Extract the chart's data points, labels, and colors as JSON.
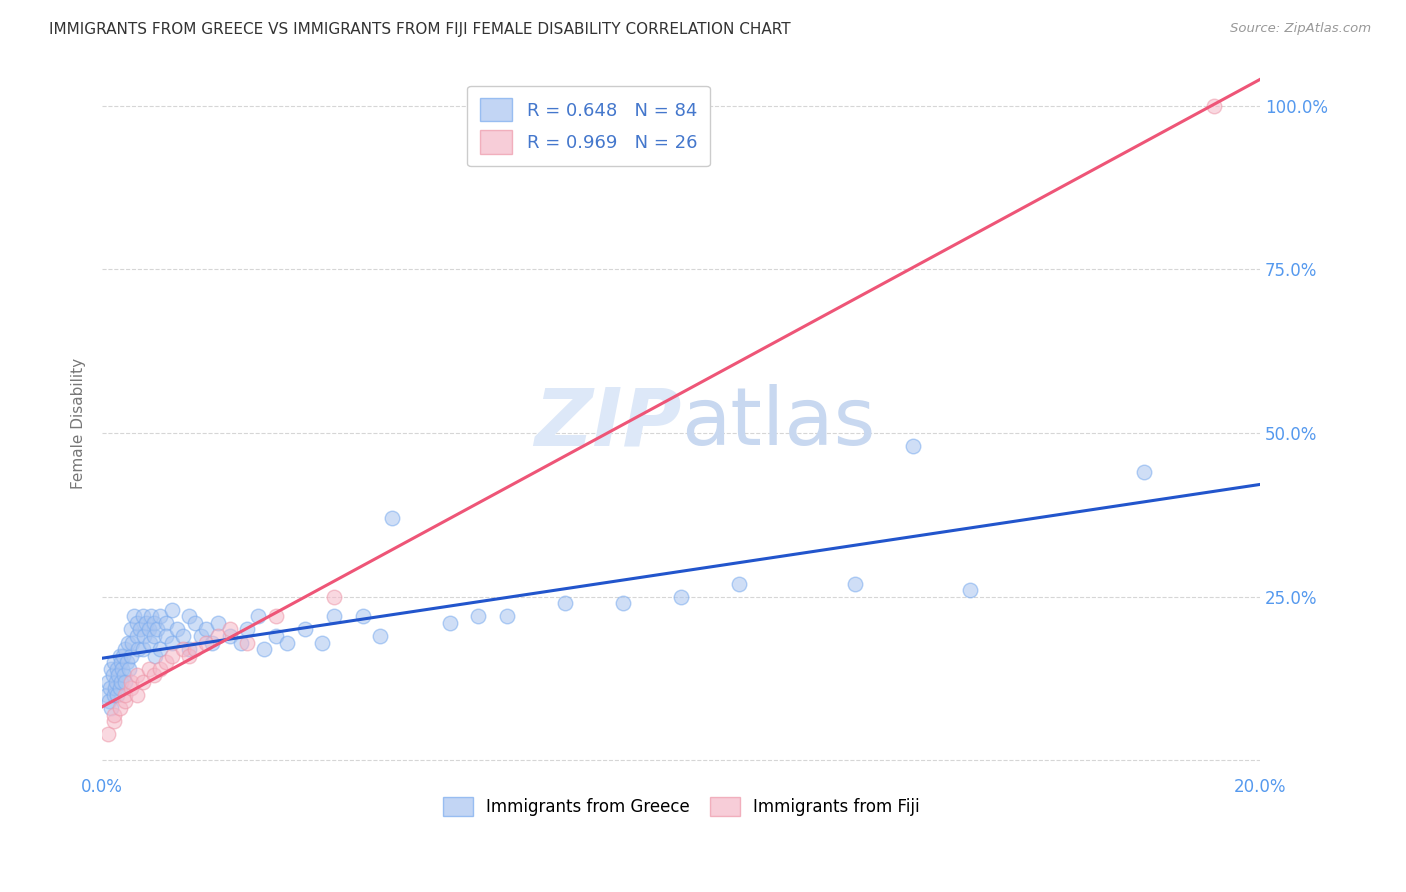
{
  "title": "IMMIGRANTS FROM GREECE VS IMMIGRANTS FROM FIJI FEMALE DISABILITY CORRELATION CHART",
  "source": "Source: ZipAtlas.com",
  "ylabel": "Female Disability",
  "xlim": [
    0.0,
    0.2
  ],
  "ylim": [
    -0.02,
    1.05
  ],
  "greece_color": "#a8c4f0",
  "fiji_color": "#f5b8c8",
  "greece_line_color": "#2255cc",
  "fiji_line_color": "#ee5577",
  "greece_edge_color": "#7aabee",
  "fiji_edge_color": "#ee99aa",
  "legend_text_color": "#4477cc",
  "watermark_color": "#dde8f8",
  "background_color": "#ffffff",
  "grid_color": "#cccccc",
  "tick_color": "#5599ee",
  "ylabel_color": "#777777",
  "title_color": "#333333",
  "source_color": "#999999",
  "greece_seed_x": [
    0.0008,
    0.001,
    0.0012,
    0.0014,
    0.0015,
    0.0016,
    0.0018,
    0.002,
    0.002,
    0.0022,
    0.0023,
    0.0025,
    0.0026,
    0.0028,
    0.003,
    0.003,
    0.0032,
    0.0033,
    0.0035,
    0.0036,
    0.0038,
    0.004,
    0.004,
    0.0042,
    0.0045,
    0.0047,
    0.005,
    0.005,
    0.0052,
    0.0055,
    0.006,
    0.006,
    0.0062,
    0.0065,
    0.007,
    0.007,
    0.0072,
    0.0075,
    0.008,
    0.0082,
    0.0085,
    0.009,
    0.009,
    0.0092,
    0.0095,
    0.01,
    0.01,
    0.011,
    0.011,
    0.012,
    0.012,
    0.013,
    0.014,
    0.015,
    0.015,
    0.016,
    0.017,
    0.018,
    0.019,
    0.02,
    0.022,
    0.024,
    0.025,
    0.027,
    0.028,
    0.03,
    0.032,
    0.035,
    0.038,
    0.04,
    0.045,
    0.048,
    0.05,
    0.06,
    0.065,
    0.07,
    0.08,
    0.09,
    0.1,
    0.11,
    0.13,
    0.14,
    0.15,
    0.18
  ],
  "greece_seed_y": [
    0.1,
    0.12,
    0.09,
    0.11,
    0.14,
    0.08,
    0.13,
    0.1,
    0.15,
    0.11,
    0.12,
    0.14,
    0.1,
    0.13,
    0.16,
    0.11,
    0.15,
    0.12,
    0.14,
    0.16,
    0.13,
    0.17,
    0.12,
    0.15,
    0.18,
    0.14,
    0.2,
    0.16,
    0.18,
    0.22,
    0.19,
    0.21,
    0.17,
    0.2,
    0.22,
    0.17,
    0.19,
    0.21,
    0.2,
    0.18,
    0.22,
    0.19,
    0.21,
    0.16,
    0.2,
    0.22,
    0.17,
    0.21,
    0.19,
    0.23,
    0.18,
    0.2,
    0.19,
    0.22,
    0.17,
    0.21,
    0.19,
    0.2,
    0.18,
    0.21,
    0.19,
    0.18,
    0.2,
    0.22,
    0.17,
    0.19,
    0.18,
    0.2,
    0.18,
    0.22,
    0.22,
    0.19,
    0.37,
    0.21,
    0.22,
    0.22,
    0.24,
    0.24,
    0.25,
    0.27,
    0.27,
    0.48,
    0.26,
    0.44
  ],
  "fiji_seed_x": [
    0.001,
    0.002,
    0.002,
    0.003,
    0.004,
    0.004,
    0.005,
    0.005,
    0.006,
    0.006,
    0.007,
    0.008,
    0.009,
    0.01,
    0.011,
    0.012,
    0.014,
    0.015,
    0.016,
    0.018,
    0.02,
    0.022,
    0.025,
    0.03,
    0.04,
    0.192
  ],
  "fiji_seed_y": [
    0.04,
    0.06,
    0.07,
    0.08,
    0.09,
    0.1,
    0.11,
    0.12,
    0.1,
    0.13,
    0.12,
    0.14,
    0.13,
    0.14,
    0.15,
    0.16,
    0.17,
    0.16,
    0.17,
    0.18,
    0.19,
    0.2,
    0.18,
    0.22,
    0.25,
    1.0
  ]
}
